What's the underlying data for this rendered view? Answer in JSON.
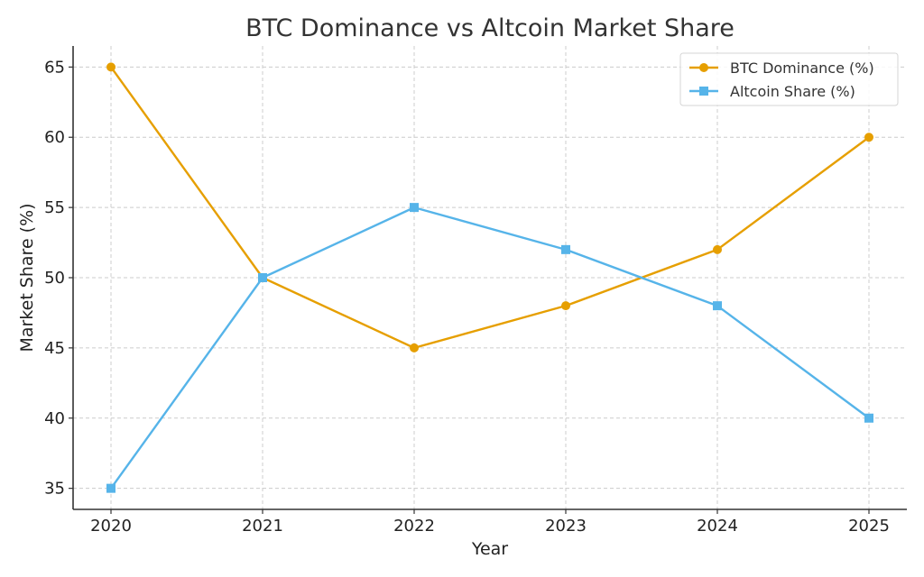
{
  "chart_data": {
    "type": "line",
    "title": "BTC Dominance vs Altcoin Market Share",
    "xlabel": "Year",
    "ylabel": "Market Share (%)",
    "x": [
      2020,
      2021,
      2022,
      2023,
      2024,
      2025
    ],
    "x_tick_labels": [
      "2020",
      "2021",
      "2022",
      "2023",
      "2024",
      "2025"
    ],
    "y_ticks": [
      35,
      40,
      45,
      50,
      55,
      60,
      65
    ],
    "ylim": [
      33.5,
      66.5
    ],
    "grid": true,
    "legend_position": "top-right",
    "series": [
      {
        "name": "BTC Dominance (%)",
        "values": [
          65,
          50,
          45,
          48,
          52,
          60
        ],
        "color": "#E69F00",
        "marker": "circle"
      },
      {
        "name": "Altcoin Share (%)",
        "values": [
          35,
          50,
          55,
          52,
          48,
          40
        ],
        "color": "#56B4E9",
        "marker": "square"
      }
    ]
  }
}
